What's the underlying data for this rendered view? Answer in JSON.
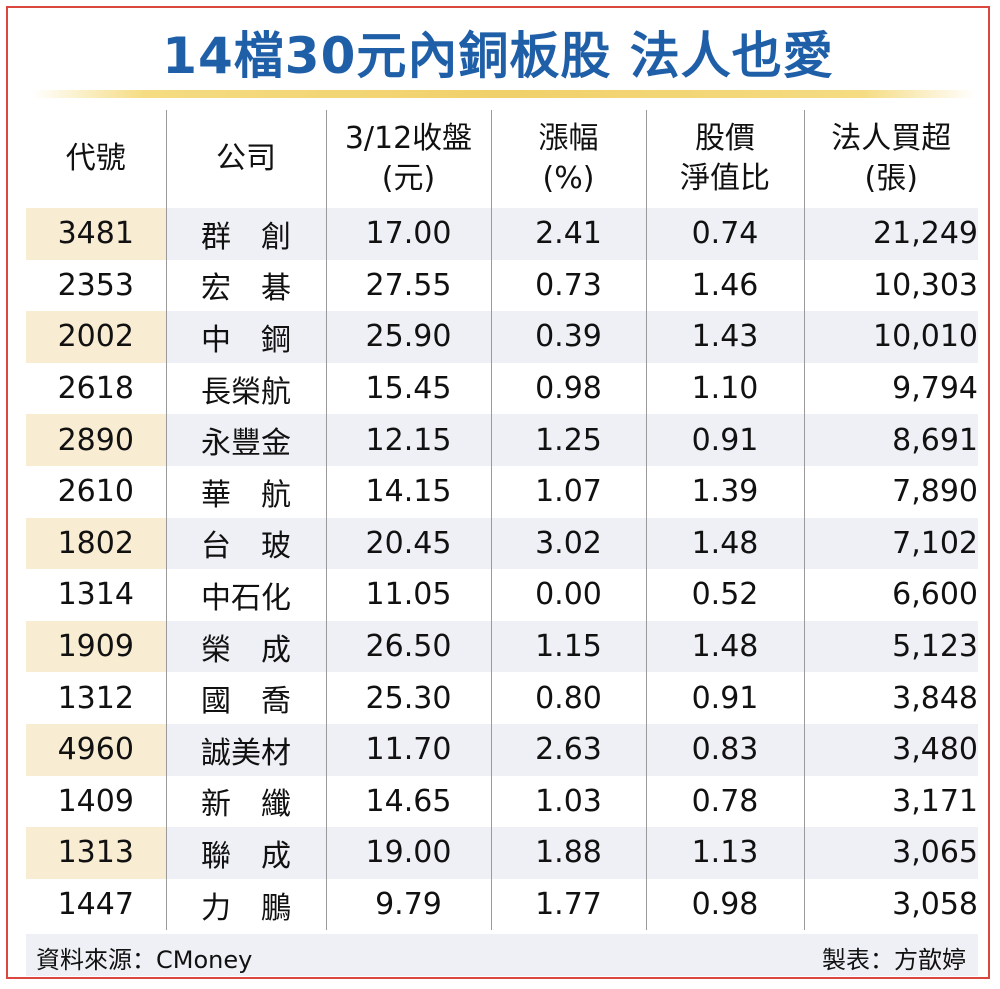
{
  "title": "14檔30元內銅板股 法人也愛",
  "table": {
    "headers": [
      {
        "line1": "代號",
        "line2": ""
      },
      {
        "line1": "公司",
        "line2": ""
      },
      {
        "line1": "3/12收盤",
        "line2": "(元)"
      },
      {
        "line1": "漲幅",
        "line2": "(%)"
      },
      {
        "line1": "股價",
        "line2": "淨值比"
      },
      {
        "line1": "法人買超",
        "line2": "(張)"
      }
    ],
    "rows": [
      {
        "code": "3481",
        "name": "群　創",
        "close": "17.00",
        "change": "2.41",
        "pb": "0.74",
        "buy": "21,249"
      },
      {
        "code": "2353",
        "name": "宏　碁",
        "close": "27.55",
        "change": "0.73",
        "pb": "1.46",
        "buy": "10,303"
      },
      {
        "code": "2002",
        "name": "中　鋼",
        "close": "25.90",
        "change": "0.39",
        "pb": "1.43",
        "buy": "10,010"
      },
      {
        "code": "2618",
        "name": "長榮航",
        "close": "15.45",
        "change": "0.98",
        "pb": "1.10",
        "buy": "9,794"
      },
      {
        "code": "2890",
        "name": "永豐金",
        "close": "12.15",
        "change": "1.25",
        "pb": "0.91",
        "buy": "8,691"
      },
      {
        "code": "2610",
        "name": "華　航",
        "close": "14.15",
        "change": "1.07",
        "pb": "1.39",
        "buy": "7,890"
      },
      {
        "code": "1802",
        "name": "台　玻",
        "close": "20.45",
        "change": "3.02",
        "pb": "1.48",
        "buy": "7,102"
      },
      {
        "code": "1314",
        "name": "中石化",
        "close": "11.05",
        "change": "0.00",
        "pb": "0.52",
        "buy": "6,600"
      },
      {
        "code": "1909",
        "name": "榮　成",
        "close": "26.50",
        "change": "1.15",
        "pb": "1.48",
        "buy": "5,123"
      },
      {
        "code": "1312",
        "name": "國　喬",
        "close": "25.30",
        "change": "0.80",
        "pb": "0.91",
        "buy": "3,848"
      },
      {
        "code": "4960",
        "name": "誠美材",
        "close": "11.70",
        "change": "2.63",
        "pb": "0.83",
        "buy": "3,480"
      },
      {
        "code": "1409",
        "name": "新　纖",
        "close": "14.65",
        "change": "1.03",
        "pb": "0.78",
        "buy": "3,171"
      },
      {
        "code": "1313",
        "name": "聯　成",
        "close": "19.00",
        "change": "1.88",
        "pb": "1.13",
        "buy": "3,065"
      },
      {
        "code": "1447",
        "name": "力　鵬",
        "close": "9.79",
        "change": "1.77",
        "pb": "0.98",
        "buy": "3,058"
      }
    ]
  },
  "footer": {
    "source": "資料來源：CMoney",
    "maker": "製表：方歆婷"
  },
  "colors": {
    "title": "#1f5fa8",
    "border": "#d9473f",
    "row_band": "#eef0f5",
    "code_band": "#f8ecd3",
    "rule": "#f0d06a"
  }
}
